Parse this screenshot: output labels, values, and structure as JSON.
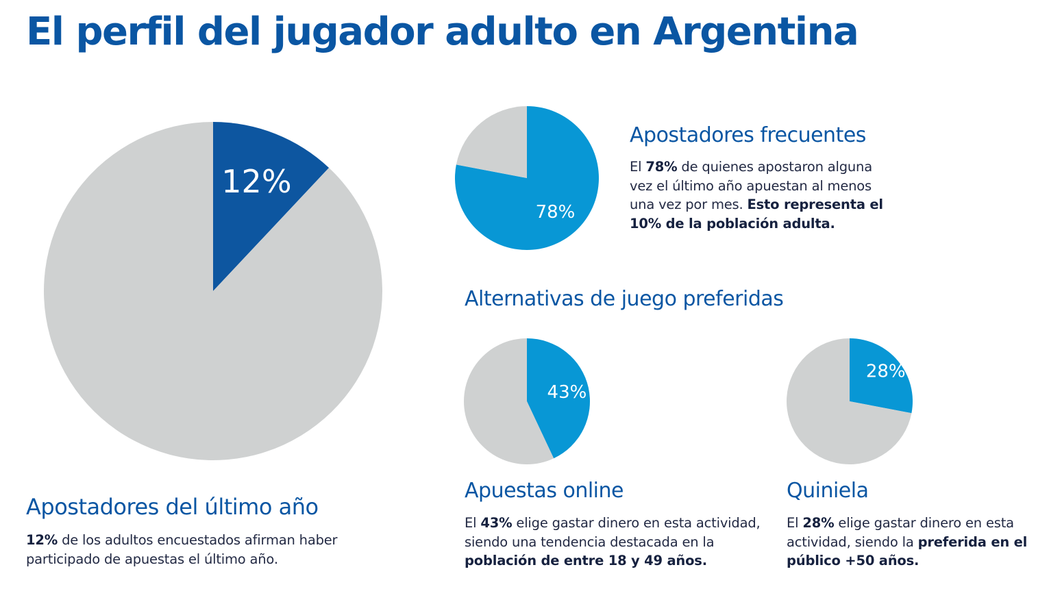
{
  "page_title": "El perfil del jugador adulto en Argentina",
  "colors": {
    "title": "#0a56a3",
    "dark_blue": "#0d56a0",
    "light_blue": "#0897d5",
    "grey": "#cfd1d1",
    "text": "#232a44"
  },
  "chart_data": [
    {
      "type": "pie",
      "title": "Apostadores del último año",
      "slices": [
        {
          "label": "12%",
          "value": 12,
          "color": "#0d56a0"
        },
        {
          "value": 88,
          "color": "#cfd1d1"
        }
      ]
    },
    {
      "type": "pie",
      "title": "Apostadores frecuentes",
      "slices": [
        {
          "label": "78%",
          "value": 78,
          "color": "#0897d5"
        },
        {
          "value": 22,
          "color": "#cfd1d1"
        }
      ]
    },
    {
      "type": "pie",
      "title": "Apuestas online",
      "slices": [
        {
          "label": "43%",
          "value": 43,
          "color": "#0897d5"
        },
        {
          "value": 57,
          "color": "#cfd1d1"
        }
      ]
    },
    {
      "type": "pie",
      "title": "Quiniela",
      "slices": [
        {
          "label": "28%",
          "value": 28,
          "color": "#0897d5"
        },
        {
          "value": 72,
          "color": "#cfd1d1"
        }
      ]
    }
  ],
  "sections": {
    "last_year": {
      "heading": "Apostadores del último año",
      "bold1": "12%",
      "text1": " de los adultos encuestados afirman haber participado de apuestas el último año."
    },
    "frequent": {
      "heading": "Apostadores frecuentes",
      "text1": "El ",
      "bold1": "78%",
      "text2": " de quienes apostaron alguna vez el último año apuestan al menos una vez por mes. ",
      "bold2": "Esto representa el 10% de la población adulta."
    },
    "alternatives": {
      "heading": "Alternativas de juego preferidas"
    },
    "online": {
      "heading": "Apuestas online",
      "text1": "El ",
      "bold1": "43%",
      "text2": " elige gastar dinero en esta actividad, siendo una tendencia destacada en la ",
      "bold2": "población de entre 18 y 49 años."
    },
    "quiniela": {
      "heading": "Quiniela",
      "text1": "El ",
      "bold1": "28%",
      "text2": " elige gastar dinero en esta actividad, siendo la ",
      "bold2": "preferida en el público +50 años."
    }
  }
}
